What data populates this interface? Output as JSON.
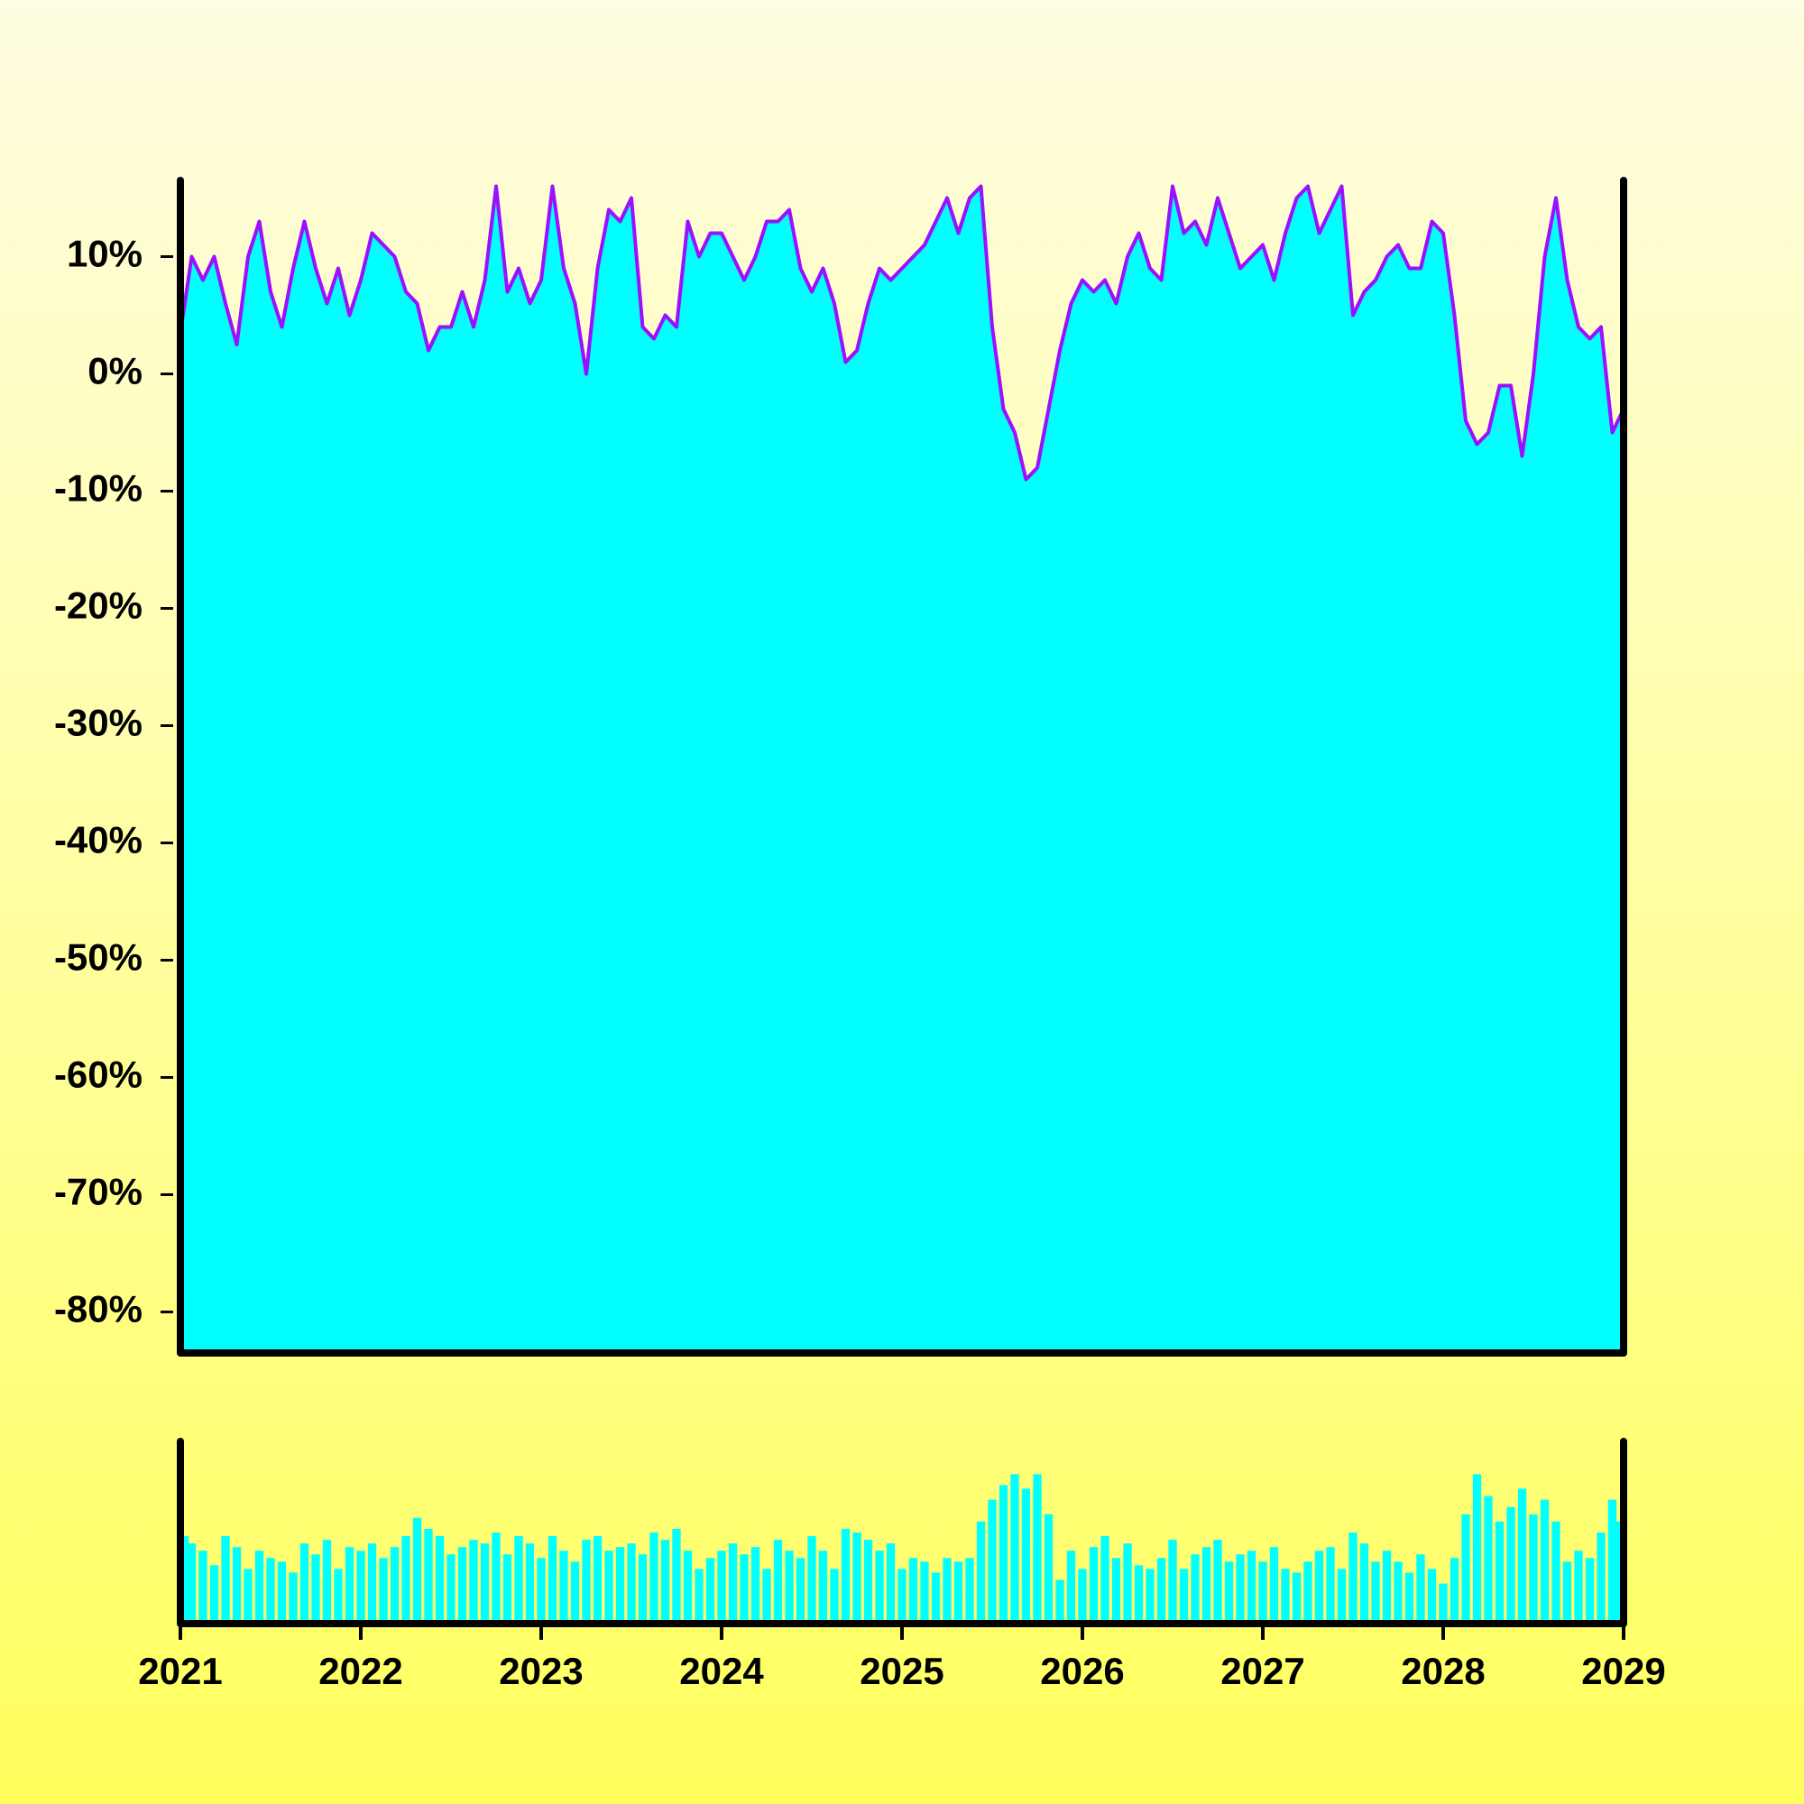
{
  "chart_data": [
    {
      "type": "area",
      "x": [
        2021.0,
        2021.0625,
        2021.125,
        2021.1875,
        2021.25,
        2021.3125,
        2021.375,
        2021.4375,
        2021.5,
        2021.5625,
        2021.625,
        2021.6875,
        2021.75,
        2021.8125,
        2021.875,
        2021.9375,
        2022.0,
        2022.0625,
        2022.125,
        2022.1875,
        2022.25,
        2022.3125,
        2022.375,
        2022.4375,
        2022.5,
        2022.5625,
        2022.625,
        2022.6875,
        2022.75,
        2022.8125,
        2022.875,
        2022.9375,
        2023.0,
        2023.0625,
        2023.125,
        2023.1875,
        2023.25,
        2023.3125,
        2023.375,
        2023.4375,
        2023.5,
        2023.5625,
        2023.625,
        2023.6875,
        2023.75,
        2023.8125,
        2023.875,
        2023.9375,
        2024.0,
        2024.0625,
        2024.125,
        2024.1875,
        2024.25,
        2024.3125,
        2024.375,
        2024.4375,
        2024.5,
        2024.5625,
        2024.625,
        2024.6875,
        2024.75,
        2024.8125,
        2024.875,
        2024.9375,
        2025.0,
        2025.0625,
        2025.125,
        2025.1875,
        2025.25,
        2025.3125,
        2025.375,
        2025.4375,
        2025.5,
        2025.5625,
        2025.625,
        2025.6875,
        2025.75,
        2025.8125,
        2025.875,
        2025.9375,
        2026.0,
        2026.0625,
        2026.125,
        2026.1875,
        2026.25,
        2026.3125,
        2026.375,
        2026.4375,
        2026.5,
        2026.5625,
        2026.625,
        2026.6875,
        2026.75,
        2026.8125,
        2026.875,
        2026.9375,
        2027.0,
        2027.0625,
        2027.125,
        2027.1875,
        2027.25,
        2027.3125,
        2027.375,
        2027.4375,
        2027.5,
        2027.5625,
        2027.625,
        2027.6875,
        2027.75,
        2027.8125,
        2027.875,
        2027.9375,
        2028.0,
        2028.0625,
        2028.125,
        2028.1875,
        2028.25,
        2028.3125,
        2028.375,
        2028.4375,
        2028.5,
        2028.5625,
        2028.625,
        2028.6875,
        2028.75,
        2028.8125,
        2028.875,
        2028.9375,
        2029.0
      ],
      "series": [
        {
          "color": "#00ffff",
          "line_color": "#9b10ff",
          "values": [
            3.5,
            10,
            8,
            10,
            6,
            2.5,
            10,
            13,
            7,
            4,
            9,
            13,
            9,
            6,
            9,
            5,
            8,
            12,
            11,
            10,
            7,
            6,
            2,
            4,
            4,
            7,
            4,
            8,
            16,
            7,
            9,
            6,
            8,
            16,
            9,
            6,
            0,
            9,
            14,
            13,
            15,
            4,
            3,
            5,
            4,
            13,
            10,
            12,
            12,
            10,
            8,
            10,
            13,
            13,
            14,
            9,
            7,
            9,
            6,
            1,
            2,
            6,
            9,
            8,
            9,
            10,
            11,
            13,
            15,
            12,
            15,
            16,
            4,
            -3,
            -5,
            -9,
            -8,
            -3,
            2,
            6,
            8,
            7,
            8,
            6,
            10,
            12,
            9,
            8,
            16,
            12,
            13,
            11,
            15,
            12,
            9,
            10,
            11,
            8,
            12,
            15,
            16,
            12,
            14,
            16,
            5,
            7,
            8,
            10,
            11,
            9,
            9,
            13,
            12,
            5,
            -4,
            -6,
            -5,
            -1,
            -1,
            -7,
            0,
            10,
            15,
            8,
            4,
            3,
            4,
            -5,
            -3
          ]
        }
      ],
      "xlim": [
        2021,
        2029
      ],
      "ylim": [
        -83.5,
        16.5
      ],
      "yticks": [
        {
          "value": -80,
          "label": "-80%"
        },
        {
          "value": -70,
          "label": "-70%"
        },
        {
          "value": -60,
          "label": "-60%"
        },
        {
          "value": -50,
          "label": "-50%"
        },
        {
          "value": -40,
          "label": "-40%"
        },
        {
          "value": -30,
          "label": "-30%"
        },
        {
          "value": -20,
          "label": "-20%"
        },
        {
          "value": -10,
          "label": "-10%"
        },
        {
          "value": 0,
          "label": "0%"
        },
        {
          "value": 10,
          "label": "10%"
        }
      ]
    },
    {
      "type": "bar",
      "x": [
        2021.0,
        2021.0625,
        2021.125,
        2021.1875,
        2021.25,
        2021.3125,
        2021.375,
        2021.4375,
        2021.5,
        2021.5625,
        2021.625,
        2021.6875,
        2021.75,
        2021.8125,
        2021.875,
        2021.9375,
        2022.0,
        2022.0625,
        2022.125,
        2022.1875,
        2022.25,
        2022.3125,
        2022.375,
        2022.4375,
        2022.5,
        2022.5625,
        2022.625,
        2022.6875,
        2022.75,
        2022.8125,
        2022.875,
        2022.9375,
        2023.0,
        2023.0625,
        2023.125,
        2023.1875,
        2023.25,
        2023.3125,
        2023.375,
        2023.4375,
        2023.5,
        2023.5625,
        2023.625,
        2023.6875,
        2023.75,
        2023.8125,
        2023.875,
        2023.9375,
        2024.0,
        2024.0625,
        2024.125,
        2024.1875,
        2024.25,
        2024.3125,
        2024.375,
        2024.4375,
        2024.5,
        2024.5625,
        2024.625,
        2024.6875,
        2024.75,
        2024.8125,
        2024.875,
        2024.9375,
        2025.0,
        2025.0625,
        2025.125,
        2025.1875,
        2025.25,
        2025.3125,
        2025.375,
        2025.4375,
        2025.5,
        2025.5625,
        2025.625,
        2025.6875,
        2025.75,
        2025.8125,
        2025.875,
        2025.9375,
        2026.0,
        2026.0625,
        2026.125,
        2026.1875,
        2026.25,
        2026.3125,
        2026.375,
        2026.4375,
        2026.5,
        2026.5625,
        2026.625,
        2026.6875,
        2026.75,
        2026.8125,
        2026.875,
        2026.9375,
        2027.0,
        2027.0625,
        2027.125,
        2027.1875,
        2027.25,
        2027.3125,
        2027.375,
        2027.4375,
        2027.5,
        2027.5625,
        2027.625,
        2027.6875,
        2027.75,
        2027.8125,
        2027.875,
        2027.9375,
        2028.0,
        2028.0625,
        2028.125,
        2028.1875,
        2028.25,
        2028.3125,
        2028.375,
        2028.4375,
        2028.5,
        2028.5625,
        2028.625,
        2028.6875,
        2028.75,
        2028.8125,
        2028.875,
        2028.9375,
        2029.0
      ],
      "series": [
        {
          "color": "#00ffff",
          "values": [
            48,
            44,
            40,
            32,
            48,
            42,
            30,
            40,
            36,
            34,
            28,
            44,
            38,
            46,
            30,
            42,
            40,
            44,
            36,
            42,
            48,
            58,
            52,
            48,
            38,
            42,
            46,
            44,
            50,
            38,
            48,
            44,
            36,
            48,
            40,
            34,
            46,
            48,
            40,
            42,
            44,
            38,
            50,
            46,
            52,
            40,
            30,
            36,
            40,
            44,
            38,
            42,
            30,
            46,
            40,
            36,
            48,
            40,
            30,
            52,
            50,
            46,
            40,
            44,
            30,
            36,
            34,
            28,
            36,
            34,
            36,
            56,
            68,
            76,
            82,
            74,
            82,
            60,
            24,
            40,
            30,
            42,
            48,
            36,
            44,
            32,
            30,
            36,
            46,
            30,
            38,
            42,
            46,
            34,
            38,
            40,
            34,
            42,
            30,
            28,
            34,
            40,
            42,
            30,
            50,
            44,
            34,
            40,
            34,
            28,
            38,
            30,
            22,
            36,
            60,
            82,
            70,
            56,
            64,
            74,
            60,
            68,
            56,
            34,
            40,
            36,
            50,
            68,
            56
          ]
        }
      ],
      "xlim": [
        2021,
        2029
      ],
      "ylim": [
        0,
        100
      ],
      "xticks": [
        2021,
        2022,
        2023,
        2024,
        2025,
        2026,
        2027,
        2028,
        2029
      ]
    }
  ]
}
